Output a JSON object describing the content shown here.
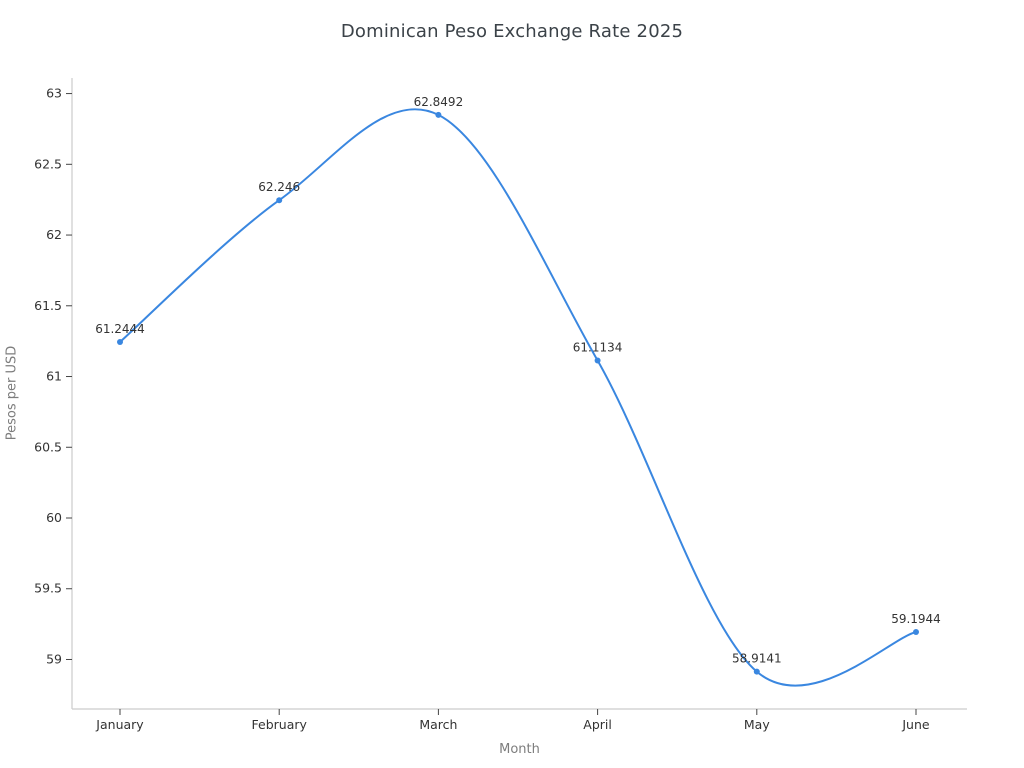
{
  "page": {
    "background": "#ffffff"
  },
  "chart_data": {
    "type": "line",
    "line_style": "spline",
    "title": "Dominican Peso Exchange Rate 2025",
    "xlabel": "Month",
    "ylabel": "Pesos per USD",
    "categories": [
      "January",
      "February",
      "March",
      "April",
      "May",
      "June"
    ],
    "values": [
      61.2444,
      62.246,
      62.8492,
      61.1134,
      58.9141,
      59.1944
    ],
    "point_labels": [
      "61.2444",
      "62.246",
      "62.8492",
      "61.1134",
      "58.9141",
      "59.1944"
    ],
    "y_ticks": [
      63,
      62.5,
      62,
      61.5,
      61,
      60.5,
      60,
      59.5,
      59
    ],
    "ylim": [
      58.65,
      63.11
    ],
    "grid": false,
    "legend": "none",
    "markers": true,
    "colors": {
      "line": "#3a87e0",
      "marker": "#3a87e0",
      "title_text": "#3b4248",
      "tick_text": "#333333",
      "point_label_text": "#333333",
      "axis_title_text": "#7d7d7d",
      "axis_line": "#cccccc",
      "tick_mark": "#444444"
    }
  }
}
